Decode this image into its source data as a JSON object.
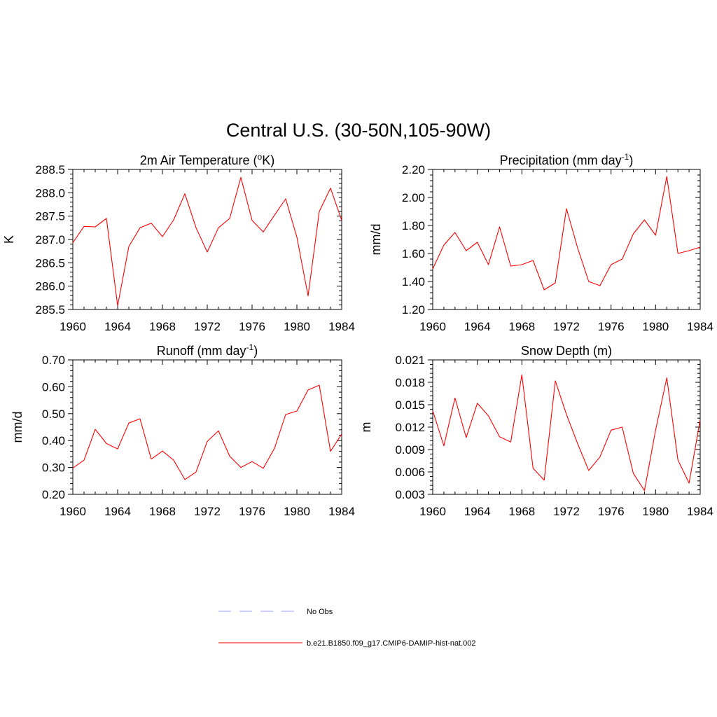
{
  "figure": {
    "title": "Central U.S. (30-50N,105-90W)"
  },
  "colors": {
    "model": "#ff0000",
    "obs": "#9999ff",
    "axis": "#000000"
  },
  "legend": {
    "items": [
      {
        "label": "No Obs",
        "style": "dashed",
        "color": "#9999ff"
      },
      {
        "label": "b.e21.B1850.f09_g17.CMIP6-DAMIP-hist-nat.002",
        "style": "solid",
        "color": "#ff0000"
      }
    ]
  },
  "chart_data": [
    {
      "type": "line",
      "title": "2m Air Temperature (°K)",
      "title_parts": {
        "pre": "2m Air Temperature (",
        "sup": "o",
        "post": "K)"
      },
      "ylabel": "K",
      "xlabel": "",
      "xlim": [
        1960,
        1984
      ],
      "ylim": [
        285.5,
        288.5
      ],
      "xticks": [
        "1960",
        "1964",
        "1968",
        "1972",
        "1976",
        "1980",
        "1984"
      ],
      "yticks": [
        "285.5",
        "286.0",
        "286.5",
        "287.0",
        "287.5",
        "288.0",
        "288.5"
      ],
      "grid": false,
      "series": [
        {
          "name": "b.e21.B1850.f09_g17.CMIP6-DAMIP-hist-nat.002",
          "x": [
            1960,
            1961,
            1962,
            1963,
            1964,
            1965,
            1966,
            1967,
            1968,
            1969,
            1970,
            1971,
            1972,
            1973,
            1974,
            1975,
            1976,
            1977,
            1978,
            1979,
            1980,
            1981,
            1982,
            1983,
            1984
          ],
          "y": [
            286.93,
            287.28,
            287.27,
            287.45,
            285.58,
            286.85,
            287.25,
            287.35,
            287.06,
            287.42,
            287.98,
            287.25,
            286.73,
            287.25,
            287.45,
            288.33,
            287.41,
            287.16,
            287.52,
            287.87,
            287.05,
            285.79,
            287.6,
            288.1,
            287.41
          ]
        }
      ]
    },
    {
      "type": "line",
      "title": "Precipitation (mm day-1)",
      "title_parts": {
        "pre": "Precipitation (mm day",
        "sup": "-1",
        "post": ")"
      },
      "ylabel": "mm/d",
      "xlabel": "",
      "xlim": [
        1960,
        1984
      ],
      "ylim": [
        1.2,
        2.2
      ],
      "xticks": [
        "1960",
        "1964",
        "1968",
        "1972",
        "1976",
        "1980",
        "1984"
      ],
      "yticks": [
        "1.20",
        "1.40",
        "1.60",
        "1.80",
        "2.00",
        "2.20"
      ],
      "grid": false,
      "series": [
        {
          "name": "b.e21.B1850.f09_g17.CMIP6-DAMIP-hist-nat.002",
          "x": [
            1960,
            1961,
            1962,
            1963,
            1964,
            1965,
            1966,
            1967,
            1968,
            1969,
            1970,
            1971,
            1972,
            1973,
            1974,
            1975,
            1976,
            1977,
            1978,
            1979,
            1980,
            1981,
            1982,
            1983,
            1984
          ],
          "y": [
            1.49,
            1.66,
            1.75,
            1.62,
            1.68,
            1.52,
            1.79,
            1.51,
            1.52,
            1.55,
            1.34,
            1.39,
            1.92,
            1.64,
            1.4,
            1.37,
            1.52,
            1.56,
            1.74,
            1.84,
            1.73,
            2.15,
            1.6,
            1.62,
            1.645
          ]
        }
      ]
    },
    {
      "type": "line",
      "title": "Runoff (mm day-1)",
      "title_parts": {
        "pre": "Runoff (mm day",
        "sup": "-1",
        "post": ")"
      },
      "ylabel": "mm/d",
      "xlabel": "",
      "xlim": [
        1960,
        1984
      ],
      "ylim": [
        0.2,
        0.7
      ],
      "xticks": [
        "1960",
        "1964",
        "1968",
        "1972",
        "1976",
        "1980",
        "1984"
      ],
      "yticks": [
        "0.20",
        "0.30",
        "0.40",
        "0.50",
        "0.60",
        "0.70"
      ],
      "grid": false,
      "series": [
        {
          "name": "b.e21.B1850.f09_g17.CMIP6-DAMIP-hist-nat.002",
          "x": [
            1960,
            1961,
            1962,
            1963,
            1964,
            1965,
            1966,
            1967,
            1968,
            1969,
            1970,
            1971,
            1972,
            1973,
            1974,
            1975,
            1976,
            1977,
            1978,
            1979,
            1980,
            1981,
            1982,
            1983,
            1984
          ],
          "y": [
            0.298,
            0.327,
            0.442,
            0.389,
            0.369,
            0.465,
            0.481,
            0.331,
            0.361,
            0.327,
            0.255,
            0.283,
            0.397,
            0.436,
            0.342,
            0.3,
            0.322,
            0.297,
            0.371,
            0.497,
            0.51,
            0.588,
            0.606,
            0.36,
            0.424
          ]
        }
      ]
    },
    {
      "type": "line",
      "title": "Snow Depth (m)",
      "title_parts": {
        "pre": "Snow Depth (m)",
        "sup": "",
        "post": ""
      },
      "ylabel": "m",
      "xlabel": "",
      "xlim": [
        1960,
        1984
      ],
      "ylim": [
        0.003,
        0.021
      ],
      "xticks": [
        "1960",
        "1964",
        "1968",
        "1972",
        "1976",
        "1980",
        "1984"
      ],
      "yticks": [
        "0.003",
        "0.006",
        "0.009",
        "0.012",
        "0.015",
        "0.018",
        "0.021"
      ],
      "grid": false,
      "series": [
        {
          "name": "b.e21.B1850.f09_g17.CMIP6-DAMIP-hist-nat.002",
          "x": [
            1960,
            1961,
            1962,
            1963,
            1964,
            1965,
            1966,
            1967,
            1968,
            1969,
            1970,
            1971,
            1972,
            1973,
            1974,
            1975,
            1976,
            1977,
            1978,
            1979,
            1980,
            1981,
            1982,
            1983,
            1984
          ],
          "y": [
            0.0142,
            0.0095,
            0.0159,
            0.0106,
            0.0152,
            0.0135,
            0.0107,
            0.01,
            0.019,
            0.0065,
            0.0049,
            0.0182,
            0.0137,
            0.0098,
            0.0062,
            0.008,
            0.0116,
            0.012,
            0.0058,
            0.0035,
            0.0116,
            0.0186,
            0.0076,
            0.0045,
            0.013
          ]
        }
      ]
    }
  ]
}
